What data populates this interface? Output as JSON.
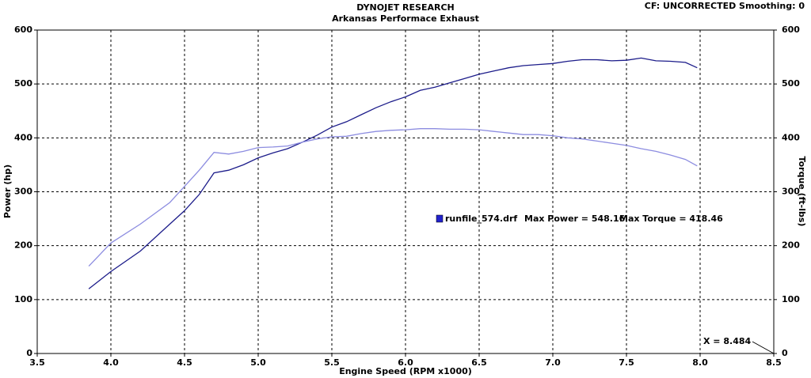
{
  "chart_data": {
    "type": "line",
    "title": "DYNOJET RESEARCH",
    "subtitle": "Arkansas Performace Exhaust",
    "header_right": "CF: UNCORRECTED  Smoothing: 0",
    "x_label": "Engine Speed (RPM x1000)",
    "y_label": "Power (hp)",
    "y2_label": "Torque (ft-lbs)",
    "legend": {
      "file": "runfile_574.drf",
      "power": "Max Power = 548.16",
      "torque": "Max Torque = 418.46",
      "color": "#2222cc"
    },
    "cursor_label": "X = 8.484",
    "xlim": [
      3.5,
      8.5
    ],
    "xticks": [
      3.5,
      {
        "value": 4,
        "label": "4.0"
      },
      4.5,
      {
        "value": 5,
        "label": "5.0"
      },
      5.5,
      {
        "value": 6,
        "label": "6.0"
      },
      6.5,
      {
        "value": 7,
        "label": "7.0"
      },
      7.5,
      {
        "value": 8,
        "label": "8.0"
      },
      8.5
    ],
    "ylim": [
      0,
      600
    ],
    "yticks": [
      0,
      100,
      200,
      300,
      400,
      500,
      600
    ],
    "y2lim": [
      0,
      600
    ],
    "y2ticks": [
      0,
      100,
      200,
      300,
      400,
      500,
      600
    ],
    "grid": true,
    "x": [
      3.85,
      4.0,
      4.2,
      4.4,
      4.5,
      4.6,
      4.7,
      4.8,
      4.9,
      5.0,
      5.1,
      5.2,
      5.3,
      5.4,
      5.5,
      5.6,
      5.7,
      5.8,
      5.9,
      6.0,
      6.1,
      6.2,
      6.3,
      6.4,
      6.5,
      6.6,
      6.7,
      6.8,
      6.9,
      7.0,
      7.1,
      7.2,
      7.3,
      7.4,
      7.5,
      7.6,
      7.7,
      7.8,
      7.9,
      7.98
    ],
    "series": [
      {
        "color": "#1c1c8a",
        "values": [
          120,
          152,
          190,
          240,
          265,
          295,
          335,
          340,
          350,
          363,
          372,
          380,
          392,
          405,
          420,
          430,
          443,
          456,
          467,
          476,
          488,
          494,
          502,
          510,
          518,
          524,
          530,
          534,
          536,
          538,
          542,
          545,
          545,
          543,
          544,
          548,
          543,
          542,
          540,
          530
        ]
      },
      {
        "color": "#8c8ce0",
        "axis": "y2",
        "values": [
          162,
          205,
          240,
          280,
          310,
          340,
          373,
          370,
          375,
          382,
          383,
          385,
          392,
          398,
          402,
          403,
          408,
          412,
          414,
          415,
          417,
          417,
          416,
          416,
          415,
          412,
          409,
          406,
          406,
          404,
          400,
          398,
          394,
          390,
          386,
          380,
          375,
          368,
          360,
          348
        ]
      }
    ]
  }
}
